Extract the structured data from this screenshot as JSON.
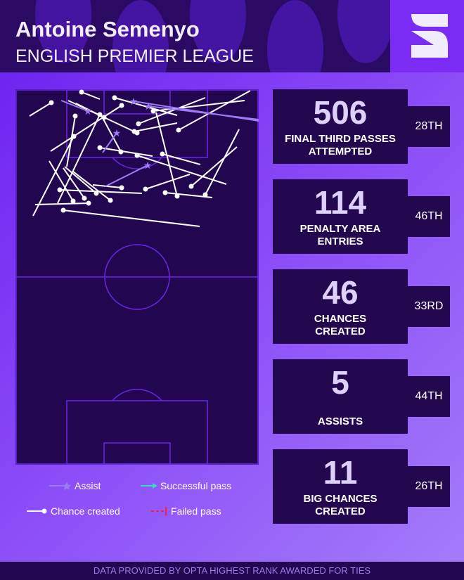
{
  "header": {
    "player_name": "Antoine Semenyo",
    "league": "ENGLISH PREMIER LEAGUE",
    "logo": "S-logo"
  },
  "legend": {
    "assist": "Assist",
    "successful_pass": "Successful pass",
    "chance_created": "Chance created",
    "failed_pass": "Failed pass"
  },
  "colors": {
    "assist": "#9d7bf5",
    "successful_pass": "#2fe0c0",
    "chance_created": "#ffffff",
    "failed_pass": "#e8254a",
    "card": "#23084f",
    "pitch": "#230650",
    "pitch_lines": "#6a26e8"
  },
  "stats": [
    {
      "value": "506",
      "label1": "FINAL THIRD PASSES",
      "label2": "ATTEMPTED",
      "rank": "28TH"
    },
    {
      "value": "114",
      "label1": "PENALTY AREA",
      "label2": "ENTRIES",
      "rank": "46TH"
    },
    {
      "value": "46",
      "label1": "CHANCES",
      "label2": "CREATED",
      "rank": "33RD"
    },
    {
      "value": "5",
      "label1": "",
      "label2": "ASSISTS",
      "rank": "44TH"
    },
    {
      "value": "11",
      "label1": "BIG CHANCES",
      "label2": "CREATED",
      "rank": "26TH"
    }
  ],
  "footer": "DATA PROVIDED BY OPTA HIGHEST RANK AWARDED FOR TIES"
}
